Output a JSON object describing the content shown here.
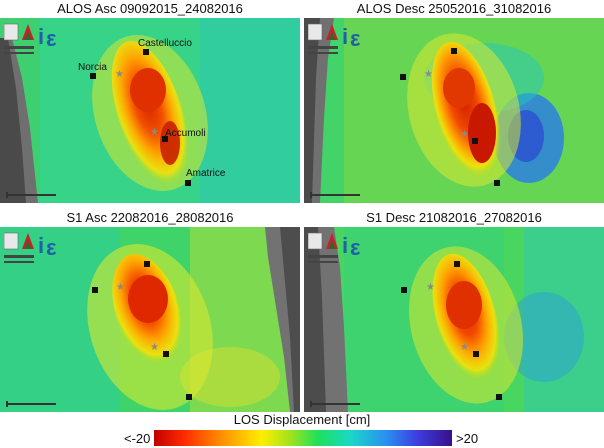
{
  "panels": [
    {
      "title": "ALOS Asc 09092015_24082016",
      "towns": [
        "Castelluccio",
        "Norcia",
        "Accumoli",
        "Amatrice"
      ]
    },
    {
      "title": "ALOS Desc 25052016_31082016",
      "towns": []
    },
    {
      "title": "S1 Asc 22082016_28082016",
      "towns": []
    },
    {
      "title": "S1 Desc 21082016_27082016",
      "towns": []
    }
  ],
  "legend": {
    "title": "LOS Displacement [cm]",
    "min_label": "<-20",
    "max_label": ">20"
  },
  "colors": {
    "red": "#e01800",
    "orange": "#ff8a00",
    "yellow": "#ffe100",
    "green": "#3ee052",
    "cyan": "#19d0c8",
    "blue": "#2a6fe0",
    "purple": "#3a0f8a"
  }
}
